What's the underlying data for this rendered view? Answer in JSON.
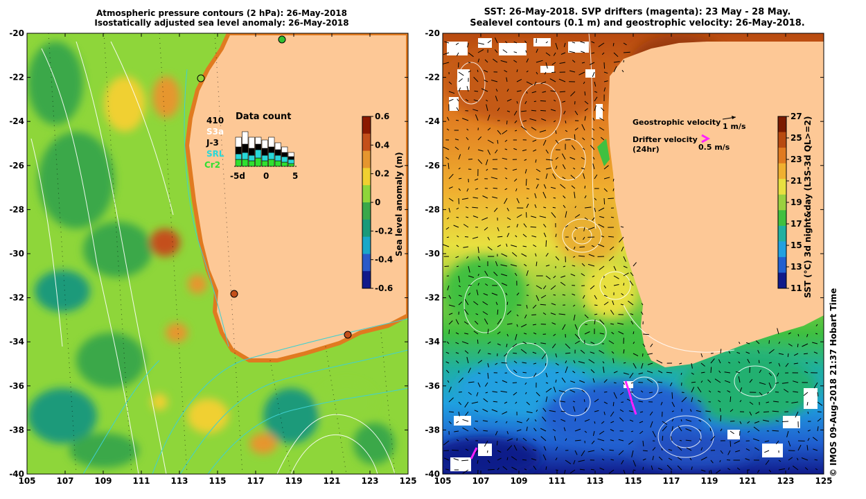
{
  "left_panel": {
    "title_line1": "Atmospheric pressure contours (2 hPa): 26-May-2018",
    "title_line2": "Isostatically adjusted sea level anomaly: 26-May-2018",
    "colorbar": {
      "label": "Sea level anomaly (m)",
      "ticks": [
        "0.6",
        "0.4",
        "0.2",
        "0",
        "-0.2",
        "-0.4",
        "-0.6"
      ],
      "colors": [
        "#8b1a00",
        "#c4501a",
        "#e6962e",
        "#f0d030",
        "#8ed63a",
        "#3aa84a",
        "#1a9a7a",
        "#1aa8c8",
        "#2a5ac8",
        "#101a8a"
      ]
    },
    "data_count": {
      "title": "Data count",
      "total": "410",
      "legend": [
        {
          "label": "S3a",
          "color": "#ffffff"
        },
        {
          "label": "J-3",
          "color": "#000000"
        },
        {
          "label": "SRL",
          "color": "#28d8d8"
        },
        {
          "label": "Cr2",
          "color": "#30e030"
        }
      ],
      "axis_labels": [
        "-5d",
        "0",
        "5"
      ]
    }
  },
  "right_panel": {
    "title_line1": "SST: 26-May-2018. SVP drifters (magenta): 23 May - 28 May.",
    "title_line2": "Sealevel contours (0.1 m) and geostrophic velocity: 26-May-2018.",
    "geo_velocity_label": "Geostrophic velocity",
    "geo_velocity_scale": "1 m/s",
    "drifter_label_line1": "Drifter velocity",
    "drifter_label_line2": "(24hr)",
    "drifter_scale": "0.5 m/s",
    "colorbar": {
      "label": "SST (°C) 3d night&day (L3S-3d QL>=2)",
      "ticks": [
        "27",
        "25",
        "23",
        "21",
        "19",
        "17",
        "15",
        "13",
        "11"
      ],
      "colors": [
        "#7a1a00",
        "#b84a10",
        "#e07a20",
        "#f0b030",
        "#e8e040",
        "#9ad040",
        "#40c040",
        "#20b0a0",
        "#20a0e0",
        "#2060d0",
        "#101a8a"
      ]
    }
  },
  "axes": {
    "y_ticks": [
      "-20",
      "-22",
      "-24",
      "-26",
      "-28",
      "-30",
      "-32",
      "-34",
      "-36",
      "-38",
      "-40"
    ],
    "x_ticks": [
      "105",
      "107",
      "109",
      "111",
      "113",
      "115",
      "117",
      "119",
      "121",
      "123",
      "125"
    ]
  },
  "colors": {
    "land": "#fdc896",
    "coast_orange": "#e07a20",
    "drifter": "#ff20ff",
    "contour_white": "#ffffff",
    "contour_cyan": "#40d0d0"
  },
  "credit": "© IMOS 09-Aug-2018 21:37 Hobart Time"
}
